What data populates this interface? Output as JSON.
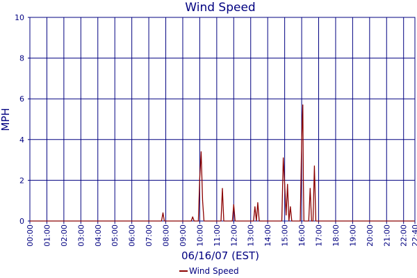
{
  "chart_data": {
    "type": "line",
    "title": "Wind Speed",
    "ylabel": "MPH",
    "xlabel": "06/16/07 (EST)",
    "ylim": [
      0,
      10
    ],
    "y_ticks": [
      "0",
      "2",
      "4",
      "6",
      "8",
      "10"
    ],
    "x_ticks": [
      "00:00",
      "01:00",
      "02:00",
      "03:00",
      "04:00",
      "05:00",
      "06:00",
      "07:00",
      "08:00",
      "09:00",
      "10:00",
      "11:00",
      "12:00",
      "13:00",
      "14:00",
      "15:00",
      "16:00",
      "17:00",
      "18:00",
      "19:00",
      "20:00",
      "21:00",
      "22:00",
      "22:40"
    ],
    "x_range": [
      "00:00",
      "22:40"
    ],
    "grid": true,
    "legend_position": "bottom-center",
    "colors": {
      "series": "#8b0000",
      "axis": "#000080",
      "grid": "#000080"
    },
    "series": [
      {
        "name": "Wind Speed",
        "points": [
          [
            "00:00",
            0
          ],
          [
            "07:45",
            0
          ],
          [
            "07:50",
            0.4
          ],
          [
            "07:55",
            0
          ],
          [
            "09:30",
            0
          ],
          [
            "09:35",
            0.2
          ],
          [
            "09:40",
            0
          ],
          [
            "09:55",
            0
          ],
          [
            "10:00",
            2.1
          ],
          [
            "10:05",
            3.4
          ],
          [
            "10:10",
            1.0
          ],
          [
            "10:15",
            0
          ],
          [
            "11:15",
            0
          ],
          [
            "11:20",
            1.6
          ],
          [
            "11:25",
            0
          ],
          [
            "11:55",
            0
          ],
          [
            "12:00",
            0.8
          ],
          [
            "12:05",
            0
          ],
          [
            "13:10",
            0
          ],
          [
            "13:15",
            0.7
          ],
          [
            "13:20",
            0
          ],
          [
            "13:25",
            0.9
          ],
          [
            "13:30",
            0
          ],
          [
            "14:50",
            0
          ],
          [
            "14:55",
            3.1
          ],
          [
            "15:00",
            1.8
          ],
          [
            "15:05",
            0.3
          ],
          [
            "15:10",
            1.8
          ],
          [
            "15:15",
            0
          ],
          [
            "15:20",
            0.7
          ],
          [
            "15:25",
            0
          ],
          [
            "15:55",
            0
          ],
          [
            "16:00",
            4.0
          ],
          [
            "16:02",
            4.9
          ],
          [
            "16:04",
            5.7
          ],
          [
            "16:06",
            2.0
          ],
          [
            "16:08",
            0
          ],
          [
            "16:25",
            0
          ],
          [
            "16:30",
            1.6
          ],
          [
            "16:35",
            0
          ],
          [
            "16:40",
            0
          ],
          [
            "16:45",
            2.7
          ],
          [
            "16:50",
            0
          ],
          [
            "22:40",
            0
          ]
        ]
      }
    ]
  }
}
